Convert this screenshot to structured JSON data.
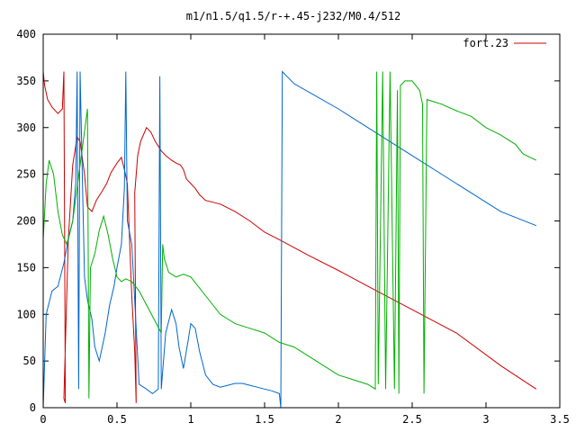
{
  "chart_data": {
    "type": "line",
    "title": "m1/n1.5/q1.5/r-+.45-j232/M0.4/512",
    "xlabel": "",
    "ylabel": "",
    "xlim": [
      0,
      3.5
    ],
    "ylim": [
      0,
      400
    ],
    "xticks": [
      0,
      0.5,
      1,
      1.5,
      2,
      2.5,
      3,
      3.5
    ],
    "xtick_labels": [
      "0",
      "0.5",
      "1",
      "1.5",
      "2",
      "2.5",
      "3",
      "3.5"
    ],
    "yticks": [
      0,
      50,
      100,
      150,
      200,
      250,
      300,
      350,
      400
    ],
    "ytick_labels": [
      "0",
      "50",
      "100",
      "150",
      "200",
      "250",
      "300",
      "350",
      "400"
    ],
    "grid": false,
    "legend": {
      "position": "top-right",
      "label": "fort.23",
      "color": "#cc0000"
    },
    "series": [
      {
        "name": "fort.23",
        "color": "#cc0000",
        "x": [
          0.0,
          0.01,
          0.03,
          0.06,
          0.1,
          0.13,
          0.14,
          0.15,
          0.14,
          0.17,
          0.2,
          0.23,
          0.25,
          0.28,
          0.3,
          0.33,
          0.36,
          0.4,
          0.43,
          0.46,
          0.5,
          0.53,
          0.55,
          0.57,
          0.6,
          0.62,
          0.63,
          0.62,
          0.64,
          0.66,
          0.7,
          0.73,
          0.76,
          0.8,
          0.83,
          0.87,
          0.9,
          0.93,
          0.95,
          0.97,
          1.0,
          1.03,
          1.06,
          1.1,
          1.15,
          1.2,
          1.3,
          1.4,
          1.5,
          1.6,
          1.8,
          2.0,
          2.2,
          2.5,
          2.8,
          3.1,
          3.34
        ],
        "y": [
          360,
          345,
          330,
          322,
          315,
          320,
          360,
          5,
          10,
          180,
          260,
          290,
          285,
          250,
          215,
          210,
          222,
          232,
          240,
          252,
          262,
          268,
          255,
          240,
          120,
          60,
          5,
          230,
          270,
          285,
          300,
          295,
          285,
          275,
          270,
          265,
          262,
          260,
          255,
          245,
          240,
          235,
          228,
          222,
          220,
          218,
          210,
          200,
          188,
          180,
          163,
          147,
          130,
          105,
          80,
          45,
          20
        ]
      },
      {
        "name": "",
        "color": "#0066cc",
        "x": [
          0.0,
          0.02,
          0.06,
          0.1,
          0.14,
          0.17,
          0.2,
          0.22,
          0.23,
          0.24,
          0.25,
          0.28,
          0.3,
          0.33,
          0.35,
          0.38,
          0.42,
          0.45,
          0.48,
          0.5,
          0.53,
          0.55,
          0.56,
          0.57,
          0.6,
          0.65,
          0.7,
          0.74,
          0.78,
          0.79,
          0.8,
          0.83,
          0.87,
          0.9,
          0.92,
          0.95,
          0.98,
          1.0,
          1.03,
          1.06,
          1.1,
          1.15,
          1.2,
          1.25,
          1.3,
          1.35,
          1.4,
          1.45,
          1.5,
          1.55,
          1.6,
          1.61,
          1.62,
          1.65,
          1.7,
          1.8,
          2.0,
          2.2,
          2.5,
          2.8,
          3.1,
          3.34
        ],
        "y": [
          0,
          100,
          125,
          130,
          155,
          180,
          200,
          240,
          360,
          20,
          360,
          140,
          115,
          95,
          65,
          50,
          80,
          110,
          130,
          150,
          175,
          235,
          360,
          200,
          175,
          25,
          20,
          15,
          20,
          355,
          20,
          80,
          105,
          90,
          65,
          42,
          70,
          90,
          85,
          60,
          35,
          25,
          22,
          24,
          26,
          26,
          24,
          22,
          20,
          18,
          15,
          0,
          360,
          355,
          347,
          338,
          320,
          300,
          270,
          240,
          210,
          195
        ]
      },
      {
        "name": "",
        "color": "#00b000",
        "x": [
          0.0,
          0.02,
          0.04,
          0.07,
          0.1,
          0.13,
          0.16,
          0.2,
          0.25,
          0.3,
          0.31,
          0.32,
          0.35,
          0.38,
          0.41,
          0.44,
          0.47,
          0.5,
          0.53,
          0.56,
          0.6,
          0.65,
          0.7,
          0.75,
          0.8,
          0.81,
          0.82,
          0.85,
          0.9,
          0.95,
          1.0,
          1.1,
          1.2,
          1.3,
          1.4,
          1.5,
          1.6,
          1.7,
          1.8,
          1.9,
          2.0,
          2.1,
          2.2,
          2.25,
          2.26,
          2.27,
          2.3,
          2.32,
          2.35,
          2.38,
          2.4,
          2.41,
          2.42,
          2.45,
          2.5,
          2.55,
          2.57,
          2.58,
          2.6,
          2.7,
          2.8,
          2.9,
          3.0,
          3.1,
          3.2,
          3.25,
          3.3,
          3.34
        ],
        "y": [
          180,
          240,
          265,
          250,
          210,
          185,
          175,
          200,
          260,
          320,
          10,
          150,
          165,
          190,
          205,
          185,
          160,
          140,
          135,
          138,
          135,
          125,
          110,
          95,
          80,
          175,
          160,
          145,
          140,
          143,
          140,
          120,
          100,
          90,
          85,
          80,
          70,
          65,
          55,
          45,
          35,
          30,
          25,
          20,
          360,
          25,
          360,
          20,
          360,
          20,
          340,
          15,
          345,
          350,
          350,
          340,
          325,
          15,
          330,
          325,
          318,
          312,
          300,
          292,
          282,
          272,
          268,
          265
        ]
      }
    ]
  }
}
